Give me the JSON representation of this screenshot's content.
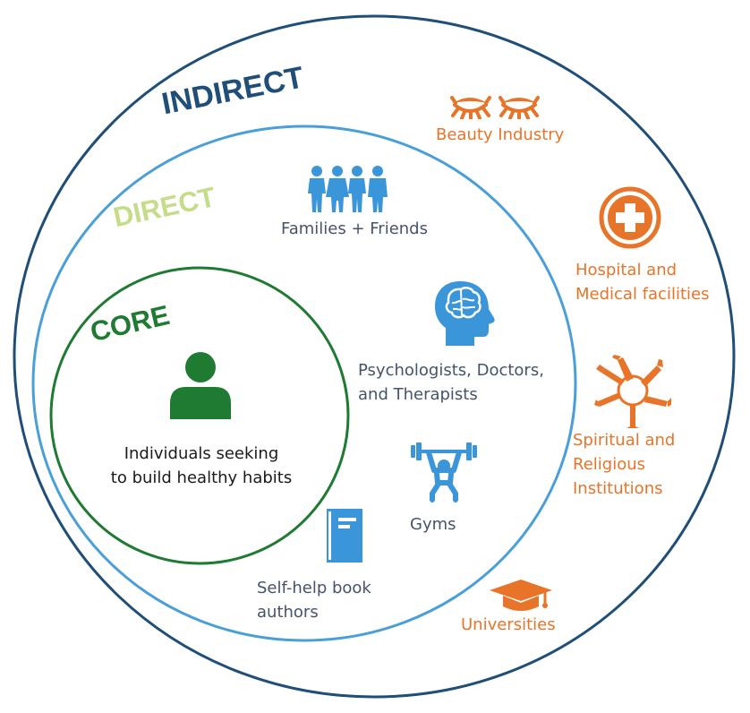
{
  "rings": {
    "indirect": {
      "title": "INDIRECT",
      "color": "#1f4e79"
    },
    "direct": {
      "title": "DIRECT",
      "color": "#c5dc8b",
      "ring_color": "#4a9fd8"
    },
    "core": {
      "title": "CORE",
      "color": "#1f7a32",
      "ring_color": "#1f7a32"
    }
  },
  "core": {
    "icon": "person-icon",
    "label_line1": "Individuals seeking",
    "label_line2": "to build healthy habits"
  },
  "direct_stakeholders": {
    "families": {
      "icon": "family-icon",
      "label": "Families + Friends"
    },
    "psychologists": {
      "icon": "brain-head-icon",
      "label_line1": "Psychologists, Doctors,",
      "label_line2": "and Therapists"
    },
    "gyms": {
      "icon": "weightlifter-icon",
      "label": "Gyms"
    },
    "authors": {
      "icon": "book-icon",
      "label_line1": "Self-help book",
      "label_line2": "authors"
    }
  },
  "indirect_stakeholders": {
    "beauty": {
      "icon": "eyelashes-icon",
      "label": "Beauty Industry"
    },
    "hospital": {
      "icon": "medical-cross-icon",
      "label_line1": "Hospital and",
      "label_line2": "Medical facilities"
    },
    "spiritual": {
      "icon": "joined-hands-icon",
      "label_line1": "Spiritual and",
      "label_line2": "Religious",
      "label_line3": "Institutions"
    },
    "universities": {
      "icon": "graduation-cap-icon",
      "label": "Universities"
    }
  },
  "colors": {
    "outer_ring": "#1f4e79",
    "icon_blue": "#3b96d9",
    "icon_green": "#1f7a32",
    "icon_orange": "#e8742a",
    "text_slate": "#44546a",
    "text_orange": "#e8742a"
  }
}
